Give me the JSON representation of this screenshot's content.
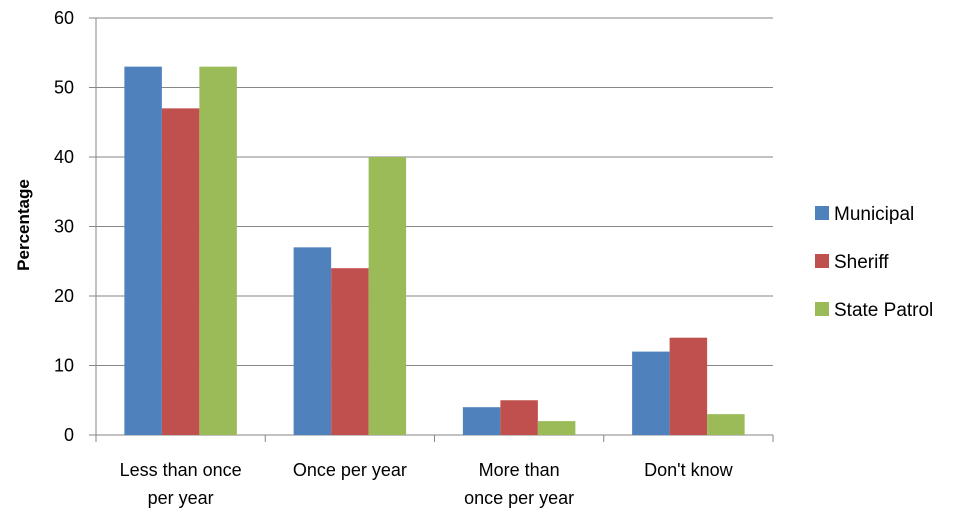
{
  "chart_data": {
    "type": "bar",
    "title": "",
    "xlabel": "",
    "ylabel": "Percentage",
    "ylim": [
      0,
      60
    ],
    "yticks": [
      0,
      10,
      20,
      30,
      40,
      50,
      60
    ],
    "grid": true,
    "legend_position": "right",
    "categories": [
      [
        "Less than once",
        "per year"
      ],
      [
        "Once per year"
      ],
      [
        "More than",
        "once per year"
      ],
      [
        "Don't know"
      ]
    ],
    "series": [
      {
        "name": "Municipal",
        "color": "#4F81BD",
        "values": [
          53,
          27,
          4,
          12
        ]
      },
      {
        "name": "Sheriff",
        "color": "#C0504D",
        "values": [
          47,
          24,
          5,
          14
        ]
      },
      {
        "name": "State Patrol",
        "color": "#9BBB59",
        "values": [
          53,
          40,
          2,
          3
        ]
      }
    ]
  }
}
